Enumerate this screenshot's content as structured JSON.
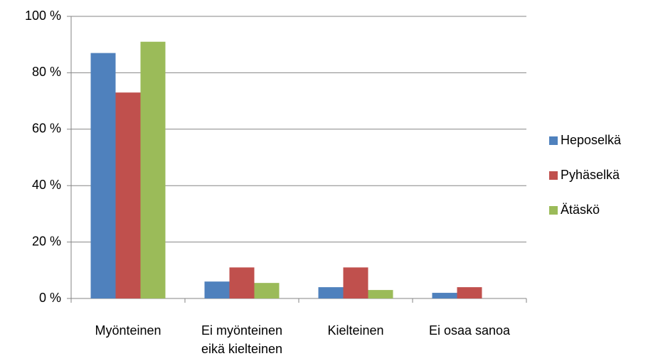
{
  "chart_data": {
    "type": "bar",
    "categories": [
      "Myönteinen",
      "Ei myönteinen eikä kielteinen",
      "Kielteinen",
      "Ei osaa sanoa"
    ],
    "series": [
      {
        "name": "Heposelkä",
        "color": "#4f81bd",
        "values": [
          87,
          6,
          4,
          2
        ]
      },
      {
        "name": "Pyhäselkä",
        "color": "#c0504d",
        "values": [
          73,
          11,
          11,
          4
        ]
      },
      {
        "name": "Ätäskö",
        "color": "#9bbb59",
        "values": [
          91,
          5.5,
          3,
          0
        ]
      }
    ],
    "ylim": [
      0,
      100
    ],
    "yticks": [
      {
        "value": 0,
        "label": "0 %"
      },
      {
        "value": 20,
        "label": "20 %"
      },
      {
        "value": 40,
        "label": "40 %"
      },
      {
        "value": 60,
        "label": "60 %"
      },
      {
        "value": 80,
        "label": "80 %"
      },
      {
        "value": 100,
        "label": "100 %"
      }
    ],
    "grid": true,
    "legend": "right"
  }
}
